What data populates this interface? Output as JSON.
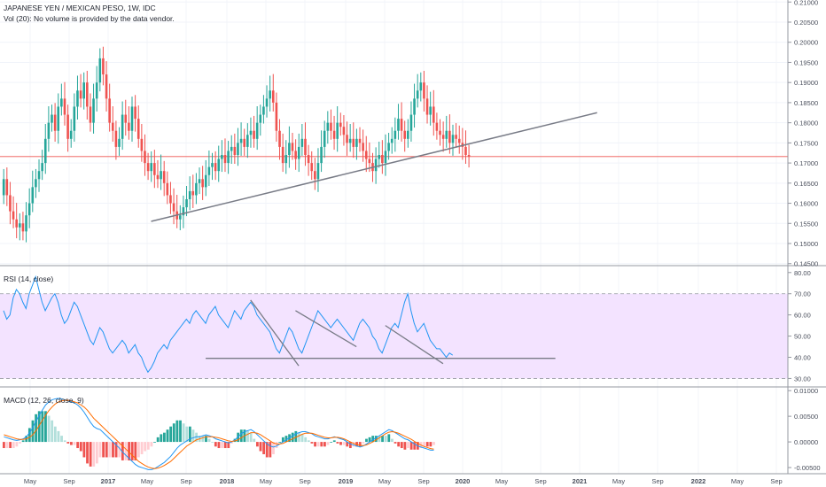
{
  "header": {
    "title": "JAPANESE YEN / MEXICAN PESO, 1W, IDC",
    "volume_note": "Vol (20): No volume is provided by the data vendor."
  },
  "colors": {
    "up": "#26a69a",
    "down": "#ef5350",
    "rsi_line": "#2196f3",
    "rsi_band": "#f3e3ff",
    "macd_line": "#2196f3",
    "signal_line": "#ff6d00",
    "hist_up_strong": "#26a69a",
    "hist_up_weak": "#b2dfdb",
    "hist_down_strong": "#ef5350",
    "hist_down_weak": "#ffcdd2",
    "trend_line": "#787b86",
    "price_line": "#ef5350"
  },
  "chart_data": [
    {
      "type": "candlestick",
      "panel": "price",
      "ylim": [
        0.1445,
        0.2105
      ],
      "y_ticks": [
        "0.21000",
        "0.20500",
        "0.20000",
        "0.19500",
        "0.19000",
        "0.18500",
        "0.18000",
        "0.17500",
        "0.17000",
        "0.16500",
        "0.16000",
        "0.15500",
        "0.15000",
        "0.14500"
      ],
      "x_ticks": [
        "May",
        "Sep",
        "2017",
        "May",
        "Sep",
        "2018",
        "May",
        "Sep",
        "2019",
        "May",
        "Sep",
        "2020",
        "May",
        "Sep",
        "2021",
        "May",
        "Sep",
        "2022",
        "May",
        "Sep"
      ],
      "current_price_line": 0.1716,
      "series": {
        "close": [
          0.166,
          0.162,
          0.158,
          0.156,
          0.154,
          0.155,
          0.153,
          0.157,
          0.16,
          0.164,
          0.166,
          0.168,
          0.17,
          0.176,
          0.18,
          0.182,
          0.178,
          0.184,
          0.186,
          0.182,
          0.176,
          0.178,
          0.184,
          0.188,
          0.186,
          0.19,
          0.184,
          0.18,
          0.186,
          0.19,
          0.196,
          0.192,
          0.186,
          0.18,
          0.178,
          0.174,
          0.176,
          0.182,
          0.18,
          0.178,
          0.184,
          0.181,
          0.176,
          0.173,
          0.17,
          0.168,
          0.17,
          0.167,
          0.166,
          0.168,
          0.165,
          0.162,
          0.16,
          0.158,
          0.156,
          0.157,
          0.159,
          0.161,
          0.163,
          0.162,
          0.165,
          0.166,
          0.164,
          0.167,
          0.169,
          0.17,
          0.168,
          0.171,
          0.172,
          0.17,
          0.173,
          0.174,
          0.172,
          0.175,
          0.176,
          0.174,
          0.177,
          0.178,
          0.176,
          0.18,
          0.182,
          0.184,
          0.186,
          0.188,
          0.185,
          0.178,
          0.174,
          0.17,
          0.172,
          0.175,
          0.173,
          0.171,
          0.174,
          0.176,
          0.172,
          0.17,
          0.168,
          0.166,
          0.17,
          0.174,
          0.178,
          0.18,
          0.178,
          0.176,
          0.18,
          0.179,
          0.177,
          0.175,
          0.176,
          0.174,
          0.176,
          0.175,
          0.173,
          0.171,
          0.17,
          0.168,
          0.171,
          0.172,
          0.17,
          0.173,
          0.175,
          0.176,
          0.178,
          0.181,
          0.178,
          0.176,
          0.178,
          0.182,
          0.186,
          0.188,
          0.19,
          0.186,
          0.182,
          0.184,
          0.18,
          0.178,
          0.177,
          0.176,
          0.178,
          0.175,
          0.177,
          0.176,
          0.175,
          0.174,
          0.172,
          0.1716
        ],
        "open_offset": true
      },
      "annotations": {
        "support_trendline": {
          "from": {
            "t": 46,
            "value": 0.1555
          },
          "to": {
            "t": 185,
            "value": 0.1825
          }
        }
      }
    },
    {
      "type": "line",
      "panel": "rsi",
      "title": "RSI (14, close)",
      "ylim": [
        26,
        82
      ],
      "y_ticks": [
        "80.00",
        "70.00",
        "60.00",
        "50.00",
        "40.00",
        "30.00"
      ],
      "band": [
        30,
        70
      ],
      "values": [
        62,
        58,
        60,
        68,
        72,
        70,
        66,
        63,
        70,
        74,
        78,
        72,
        66,
        62,
        65,
        68,
        70,
        66,
        60,
        56,
        58,
        62,
        66,
        64,
        60,
        56,
        52,
        48,
        46,
        50,
        54,
        52,
        48,
        44,
        42,
        44,
        46,
        48,
        46,
        42,
        44,
        46,
        42,
        40,
        36,
        33,
        35,
        38,
        42,
        44,
        46,
        44,
        48,
        50,
        52,
        54,
        56,
        58,
        56,
        60,
        62,
        60,
        58,
        56,
        60,
        62,
        64,
        60,
        58,
        56,
        54,
        58,
        62,
        60,
        58,
        62,
        64,
        66,
        64,
        60,
        58,
        56,
        54,
        52,
        48,
        44,
        42,
        46,
        50,
        54,
        52,
        48,
        44,
        42,
        46,
        50,
        54,
        58,
        62,
        60,
        58,
        56,
        54,
        56,
        58,
        56,
        54,
        52,
        50,
        48,
        52,
        56,
        58,
        56,
        54,
        50,
        48,
        44,
        42,
        46,
        50,
        54,
        56,
        54,
        60,
        66,
        70,
        62,
        56,
        52,
        54,
        56,
        52,
        48,
        46,
        44,
        44,
        42,
        40,
        42,
        41
      ],
      "annotations": {
        "support": {
          "from": {
            "t": 63,
            "value": 39.5
          },
          "to": {
            "t": 172,
            "value": 39.5
          }
        },
        "falling_1": {
          "from": {
            "t": 77,
            "value": 67
          },
          "to": {
            "t": 92,
            "value": 36
          }
        },
        "falling_2": {
          "from": {
            "t": 91,
            "value": 62
          },
          "to": {
            "t": 110,
            "value": 45
          }
        },
        "falling_3": {
          "from": {
            "t": 119,
            "value": 55
          },
          "to": {
            "t": 137,
            "value": 37
          }
        }
      }
    },
    {
      "type": "line+histogram",
      "panel": "macd",
      "title": "MACD (12, 26, close, 9)",
      "ylim": [
        -0.0062,
        0.0102
      ],
      "y_ticks": [
        "0.01000",
        "0.00500",
        "0.00000",
        "-0.00500"
      ],
      "series": [
        {
          "name": "MACD",
          "values": [
            0.001,
            0.0008,
            0.0006,
            0.0004,
            0.0003,
            0.0004,
            0.0006,
            0.001,
            0.0018,
            0.0028,
            0.004,
            0.0052,
            0.0062,
            0.0072,
            0.0078,
            0.0082,
            0.0084,
            0.0085,
            0.0084,
            0.0082,
            0.008,
            0.0078,
            0.0076,
            0.0072,
            0.0066,
            0.0058,
            0.0048,
            0.0038,
            0.003,
            0.0026,
            0.0024,
            0.0018,
            0.0012,
            0.0006,
            0.0,
            -0.0006,
            -0.0012,
            -0.002,
            -0.0026,
            -0.0032,
            -0.0038,
            -0.0044,
            -0.0048,
            -0.005,
            -0.0052,
            -0.0054,
            -0.0054,
            -0.0052,
            -0.0048,
            -0.0044,
            -0.004,
            -0.0034,
            -0.0028,
            -0.002,
            -0.0012,
            -0.0006,
            -0.0002,
            0.0002,
            0.0006,
            0.0008,
            0.001,
            0.001,
            0.0012,
            0.0014,
            0.0012,
            0.001,
            0.0006,
            0.0004,
            0.0002,
            0.0,
            -0.0002,
            0.0,
            0.0004,
            0.001,
            0.0016,
            0.002,
            0.0022,
            0.0024,
            0.002,
            0.0014,
            0.0008,
            0.0002,
            -0.0004,
            -0.0008,
            -0.001,
            -0.0008,
            -0.0004,
            0.0,
            0.0004,
            0.0008,
            0.0012,
            0.0016,
            0.0018,
            0.002,
            0.002,
            0.0018,
            0.0016,
            0.0012,
            0.001,
            0.0008,
            0.0006,
            0.0006,
            0.0008,
            0.001,
            0.0008,
            0.0006,
            0.0004,
            0.0,
            -0.0004,
            -0.0006,
            -0.0008,
            -0.001,
            -0.0008,
            -0.0004,
            0.0,
            0.0004,
            0.0008,
            0.0012,
            0.0016,
            0.002,
            0.0024,
            0.0022,
            0.0018,
            0.0014,
            0.001,
            0.0006,
            0.0004,
            0.0,
            -0.0004,
            -0.0008,
            -0.001,
            -0.0012,
            -0.0014,
            -0.0016,
            -0.0016
          ]
        },
        {
          "name": "Signal",
          "values": [
            0.0014,
            0.0012,
            0.001,
            0.0008,
            0.0006,
            0.0005,
            0.0005,
            0.0006,
            0.0009,
            0.0014,
            0.0022,
            0.0032,
            0.0042,
            0.0052,
            0.0061,
            0.0068,
            0.0074,
            0.0078,
            0.008,
            0.0081,
            0.0081,
            0.008,
            0.0078,
            0.0076,
            0.0072,
            0.0068,
            0.0062,
            0.0054,
            0.0046,
            0.004,
            0.0034,
            0.0028,
            0.0022,
            0.0016,
            0.001,
            0.0004,
            -0.0002,
            -0.0008,
            -0.0014,
            -0.002,
            -0.0026,
            -0.0032,
            -0.0038,
            -0.0042,
            -0.0046,
            -0.0049,
            -0.0051,
            -0.0052,
            -0.0051,
            -0.0049,
            -0.0046,
            -0.0042,
            -0.0038,
            -0.0032,
            -0.0026,
            -0.002,
            -0.0014,
            -0.0008,
            -0.0004,
            0.0,
            0.0004,
            0.0006,
            0.0008,
            0.001,
            0.001,
            0.001,
            0.0009,
            0.0008,
            0.0006,
            0.0004,
            0.0002,
            0.0001,
            0.0002,
            0.0004,
            0.0008,
            0.0012,
            0.0015,
            0.0018,
            0.0018,
            0.0017,
            0.0014,
            0.001,
            0.0006,
            0.0002,
            -0.0002,
            -0.0004,
            -0.0004,
            -0.0003,
            0.0,
            0.0003,
            0.0006,
            0.0009,
            0.0012,
            0.0015,
            0.0017,
            0.0017,
            0.0017,
            0.0015,
            0.0013,
            0.0011,
            0.0009,
            0.0008,
            0.0008,
            0.0009,
            0.0009,
            0.0008,
            0.0006,
            0.0003,
            0.0,
            -0.0003,
            -0.0005,
            -0.0007,
            -0.0007,
            -0.0006,
            -0.0003,
            0.0,
            0.0004,
            0.0008,
            0.0012,
            0.0016,
            0.0019,
            0.002,
            0.0019,
            0.0017,
            0.0014,
            0.0011,
            0.0008,
            0.0005,
            0.0001,
            -0.0003,
            -0.0006,
            -0.0009,
            -0.0011,
            -0.0013,
            -0.0014
          ]
        }
      ]
    }
  ]
}
